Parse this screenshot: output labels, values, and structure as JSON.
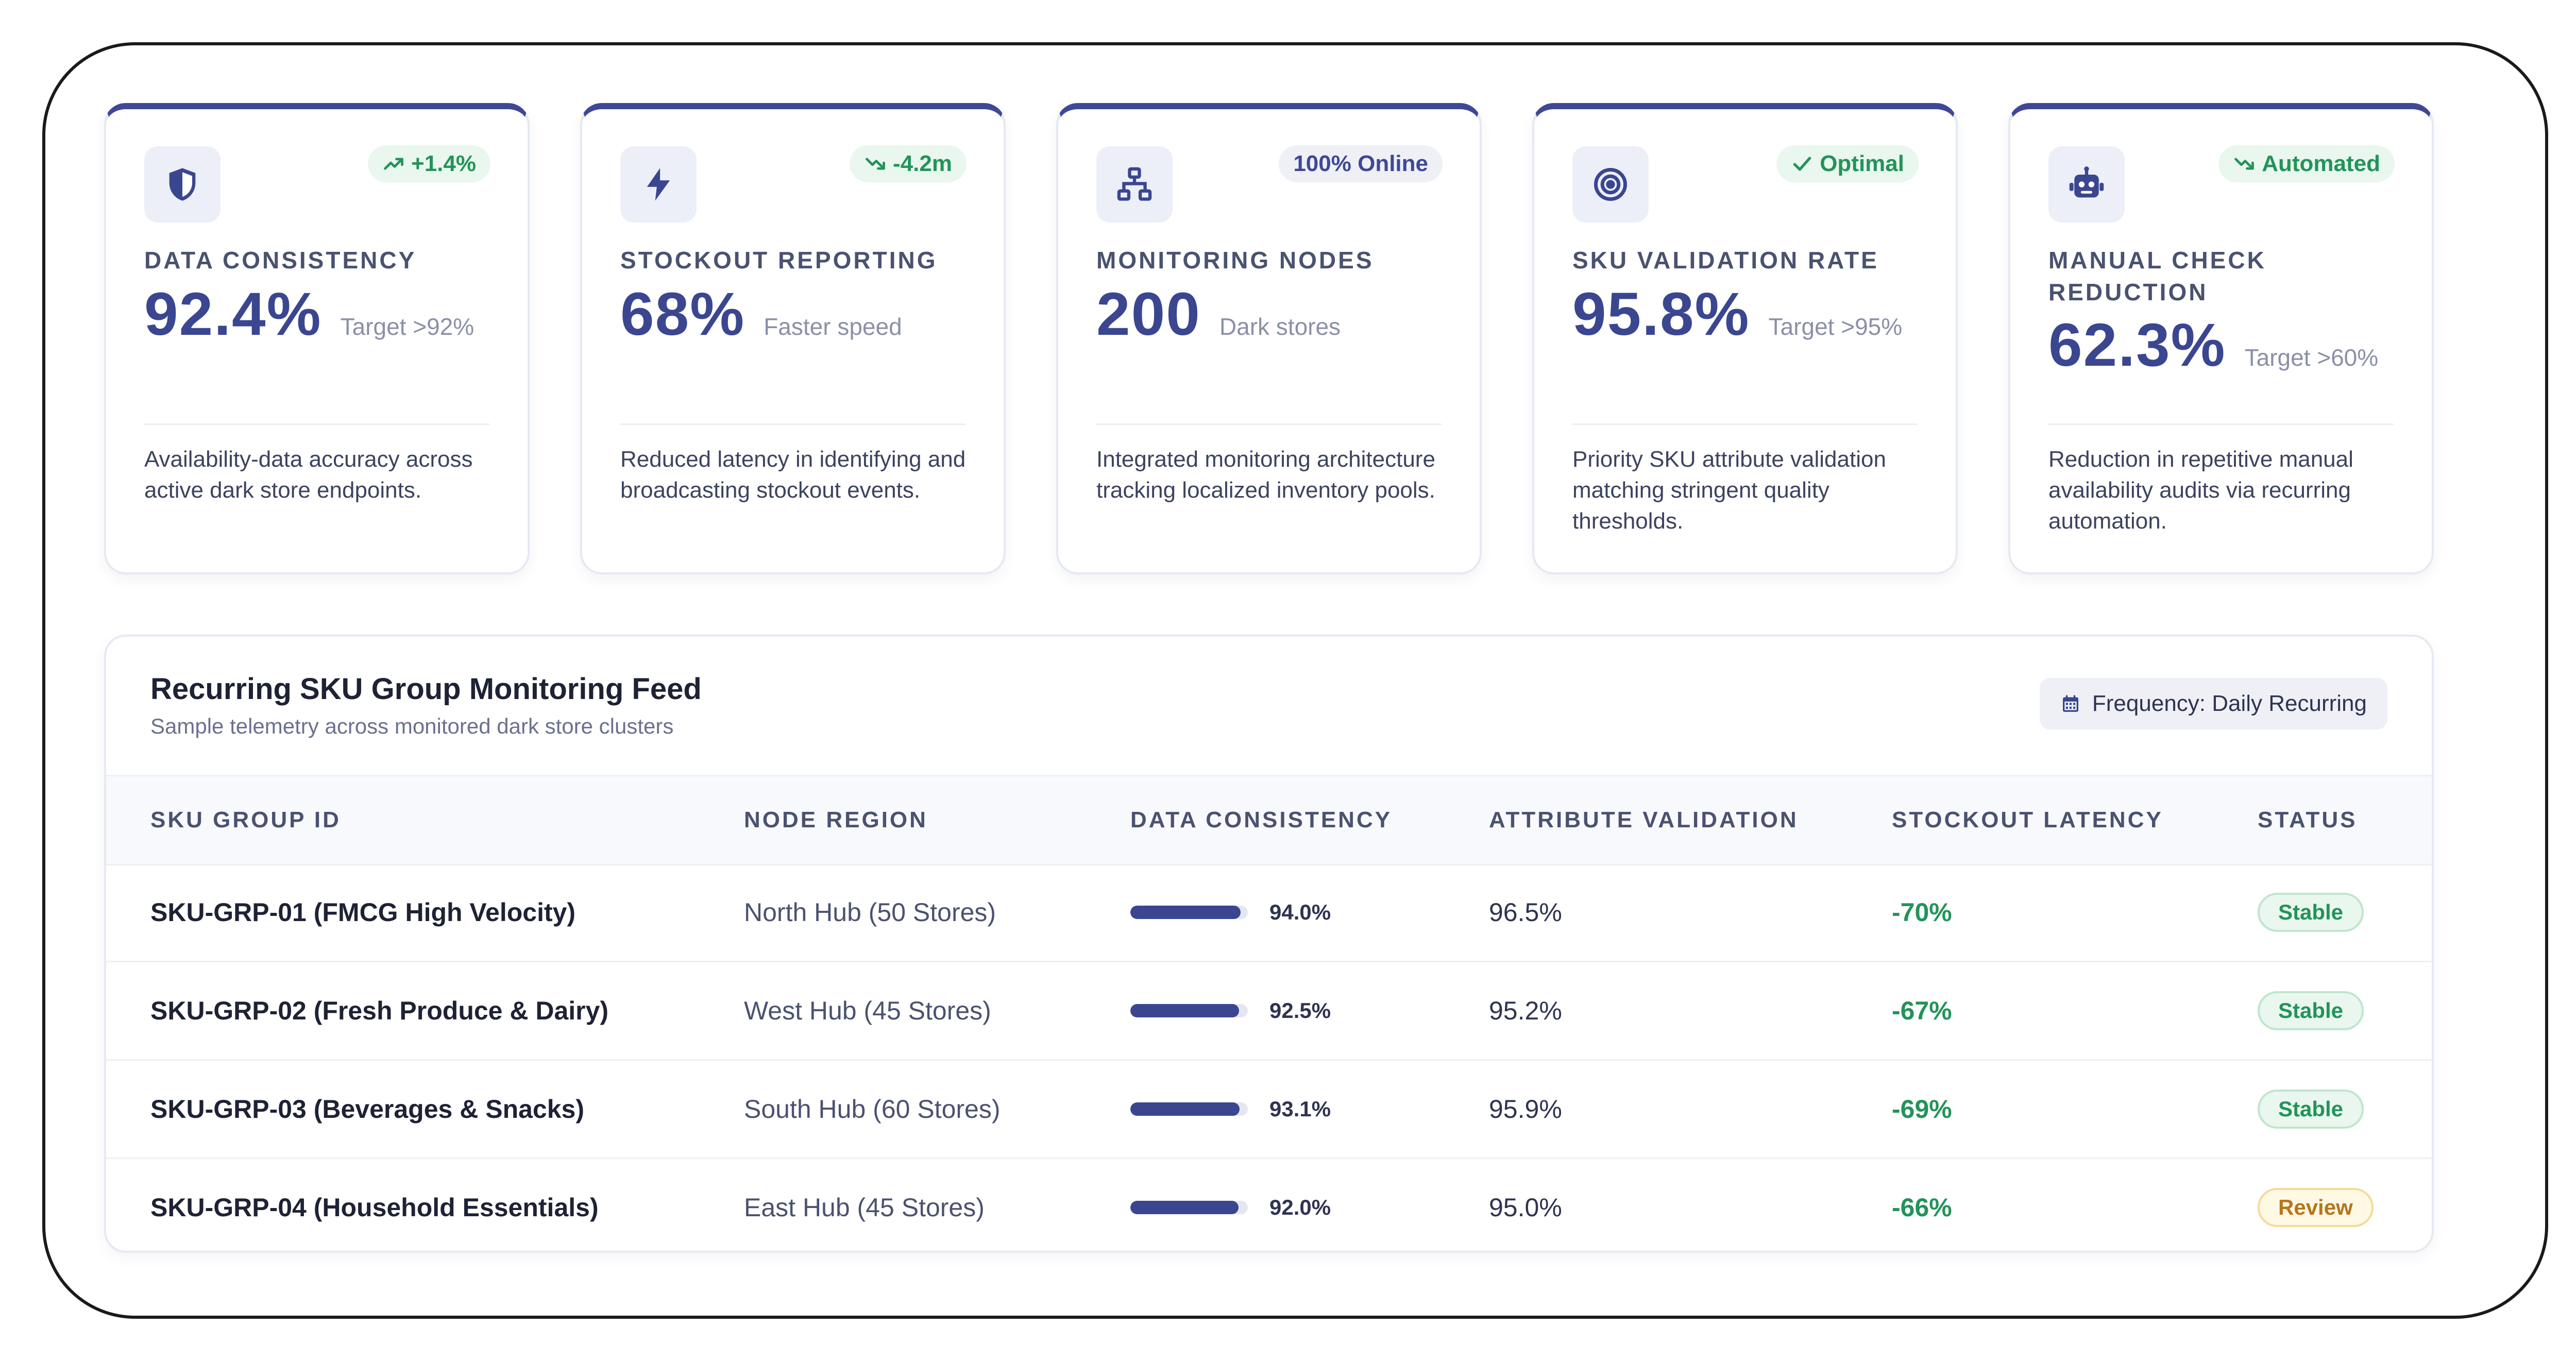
{
  "cards": [
    {
      "icon": "shield-icon",
      "badge": "+1.4%",
      "badge_icon": "trend-up-icon",
      "label": "DATA CONSISTENCY",
      "value": "92.4%",
      "sub": "Target >92%",
      "description": "Availability-data accuracy across active dark store endpoints."
    },
    {
      "icon": "bolt-icon",
      "badge": "-4.2m",
      "badge_icon": "trend-down-icon",
      "label": "STOCKOUT REPORTING",
      "value": "68%",
      "sub": "Faster speed",
      "description": "Reduced latency in identifying and broadcasting stockout events."
    },
    {
      "icon": "network-icon",
      "badge": "100% Online",
      "label": "MONITORING NODES",
      "value": "200",
      "sub": "Dark stores",
      "description": "Integrated monitoring architecture tracking localized inventory pools."
    },
    {
      "icon": "target-icon",
      "badge": "Optimal",
      "badge_icon": "check-icon",
      "label": "SKU VALIDATION RATE",
      "value": "95.8%",
      "sub": "Target >95%",
      "description": "Priority SKU attribute validation matching stringent quality thresholds."
    },
    {
      "icon": "robot-icon",
      "badge": "Automated",
      "badge_icon": "trend-down-icon",
      "label": "MANUAL CHECK REDUCTION",
      "value": "62.3%",
      "sub": "Target >60%",
      "description": "Reduction in repetitive manual availability audits via recurring automation."
    }
  ],
  "feed": {
    "title": "Recurring SKU Group Monitoring Feed",
    "subtitle": "Sample telemetry across monitored dark store clusters",
    "frequency_label": "Frequency: Daily Recurring",
    "columns": [
      "SKU GROUP ID",
      "NODE REGION",
      "DATA CONSISTENCY",
      "ATTRIBUTE VALIDATION",
      "STOCKOUT LATENCY",
      "STATUS"
    ],
    "rows": [
      {
        "id": "SKU-GRP-01 (FMCG High Velocity)",
        "region": "North Hub (50 Stores)",
        "consistency": "94.0%",
        "consistency_fill": 0.94,
        "validation": "96.5%",
        "latency": "-70%",
        "status": "Stable"
      },
      {
        "id": "SKU-GRP-02 (Fresh Produce & Dairy)",
        "region": "West Hub (45 Stores)",
        "consistency": "92.5%",
        "consistency_fill": 0.925,
        "validation": "95.2%",
        "latency": "-67%",
        "status": "Stable"
      },
      {
        "id": "SKU-GRP-03 (Beverages & Snacks)",
        "region": "South Hub (60 Stores)",
        "consistency": "93.1%",
        "consistency_fill": 0.931,
        "validation": "95.9%",
        "latency": "-69%",
        "status": "Stable"
      },
      {
        "id": "SKU-GRP-04 (Household Essentials)",
        "region": "East Hub (45 Stores)",
        "consistency": "92.0%",
        "consistency_fill": 0.92,
        "validation": "95.0%",
        "latency": "-66%",
        "status": "Review"
      }
    ]
  },
  "colors": {
    "accent": "#3a4690",
    "positive": "#23935a",
    "warning": "#b5761c"
  }
}
